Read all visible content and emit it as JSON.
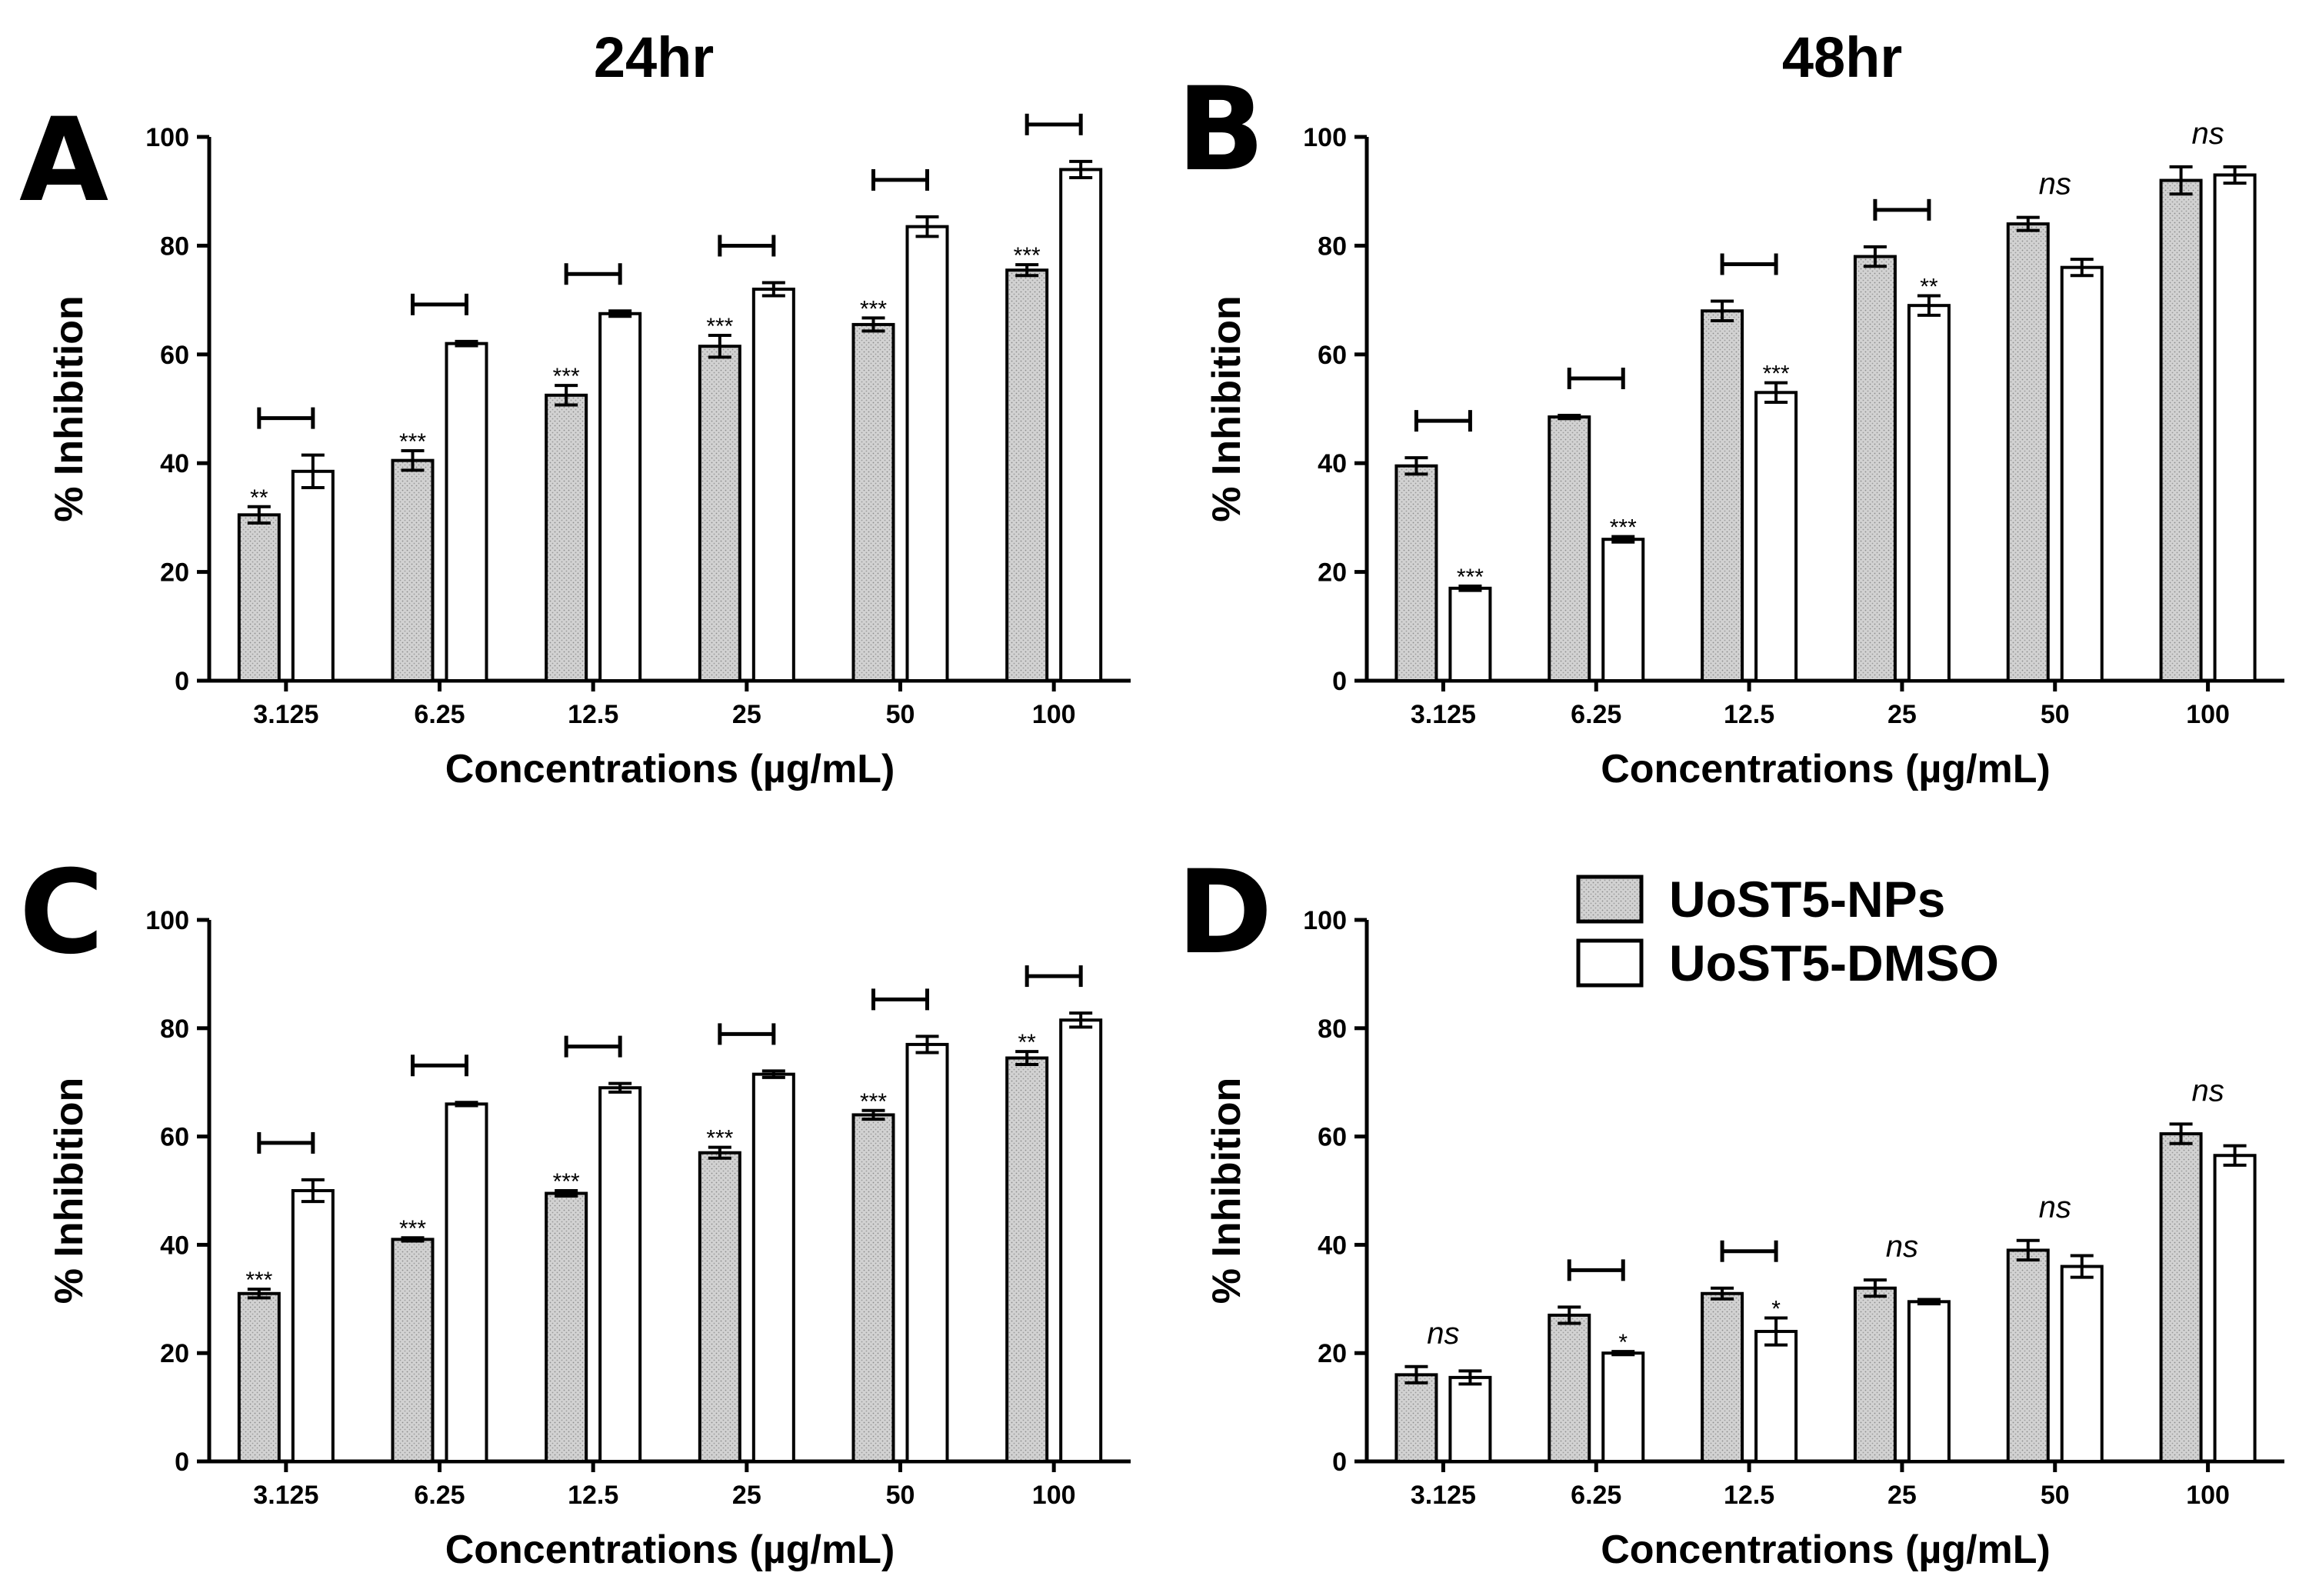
{
  "figure": {
    "column_titles": [
      "24hr",
      "48hr"
    ],
    "legend": [
      {
        "label": "UoST5-NPs",
        "style": "stippled-gray"
      },
      {
        "label": "UoST5-DMSO",
        "style": "white"
      }
    ],
    "colors": {
      "bar_np_fill": "#cfcfcf",
      "bar_dmso_fill": "#ffffff",
      "stroke": "#000000"
    }
  },
  "chart_data": [
    {
      "panel": "A",
      "type": "bar",
      "column_title": "24hr",
      "categories": [
        "3.125",
        "6.25",
        "12.5",
        "25",
        "50",
        "100"
      ],
      "xlabel": "Concentrations (µg/mL)",
      "ylabel": "% Inhibition",
      "ylim": [
        0,
        100
      ],
      "yticks": [
        "0",
        "20",
        "40",
        "60",
        "80",
        "100"
      ],
      "series": [
        {
          "name": "UoST5-NPs",
          "values": [
            30.5,
            40.5,
            52.5,
            61.5,
            65.5,
            75.5
          ],
          "errors": [
            1.5,
            1.8,
            1.8,
            2.0,
            1.2,
            1.0
          ]
        },
        {
          "name": "UoST5-DMSO",
          "values": [
            38.5,
            62,
            67.5,
            72,
            83.5,
            94
          ],
          "errors": [
            3.0,
            0.4,
            0.5,
            1.2,
            1.8,
            1.5
          ]
        }
      ],
      "significance": [
        "**",
        "***",
        "***",
        "***",
        "***",
        "***"
      ],
      "brackets": [
        true,
        true,
        true,
        true,
        true,
        true
      ]
    },
    {
      "panel": "B",
      "type": "bar",
      "column_title": "48hr",
      "categories": [
        "3.125",
        "6.25",
        "12.5",
        "25",
        "50",
        "100"
      ],
      "xlabel": "Concentrations (µg/mL)",
      "ylabel": "% Inhibition",
      "ylim": [
        0,
        100
      ],
      "yticks": [
        "0",
        "20",
        "40",
        "60",
        "80",
        "100"
      ],
      "series": [
        {
          "name": "UoST5-NPs",
          "values": [
            39.5,
            48.5,
            68,
            78,
            84,
            92
          ],
          "errors": [
            1.5,
            0.3,
            1.8,
            1.8,
            1.2,
            2.5
          ]
        },
        {
          "name": "UoST5-DMSO",
          "values": [
            17,
            26,
            53,
            69,
            76,
            93
          ],
          "errors": [
            0.4,
            0.5,
            1.8,
            1.8,
            1.5,
            1.5
          ]
        }
      ],
      "significance": [
        "***",
        "***",
        "***",
        "**",
        "ns",
        "ns"
      ],
      "brackets": [
        true,
        true,
        true,
        true,
        false,
        false
      ]
    },
    {
      "panel": "C",
      "type": "bar",
      "categories": [
        "3.125",
        "6.25",
        "12.5",
        "25",
        "50",
        "100"
      ],
      "xlabel": "Concentrations (µg/mL)",
      "ylabel": "% Inhibition",
      "ylim": [
        0,
        100
      ],
      "yticks": [
        "0",
        "20",
        "40",
        "60",
        "80",
        "100"
      ],
      "series": [
        {
          "name": "UoST5-NPs",
          "values": [
            31,
            41,
            49.5,
            57,
            64,
            74.5
          ],
          "errors": [
            0.8,
            0.3,
            0.5,
            1.0,
            0.8,
            1.2
          ]
        },
        {
          "name": "UoST5-DMSO",
          "values": [
            50,
            66,
            69,
            71.5,
            77,
            81.5
          ],
          "errors": [
            2.0,
            0.3,
            0.8,
            0.6,
            1.5,
            1.3
          ]
        }
      ],
      "significance": [
        "***",
        "***",
        "***",
        "***",
        "***",
        "**"
      ],
      "brackets": [
        true,
        true,
        true,
        true,
        true,
        true
      ]
    },
    {
      "panel": "D",
      "type": "bar",
      "categories": [
        "3.125",
        "6.25",
        "12.5",
        "25",
        "50",
        "100"
      ],
      "xlabel": "Concentrations (µg/mL)",
      "ylabel": "% Inhibition",
      "ylim": [
        0,
        100
      ],
      "yticks": [
        "0",
        "20",
        "40",
        "60",
        "80",
        "100"
      ],
      "series": [
        {
          "name": "UoST5-NPs",
          "values": [
            16,
            27,
            31,
            32,
            39,
            60.5
          ],
          "errors": [
            1.5,
            1.5,
            1.0,
            1.5,
            1.8,
            1.8
          ]
        },
        {
          "name": "UoST5-DMSO",
          "values": [
            15.5,
            20,
            24,
            29.5,
            36,
            56.5
          ],
          "errors": [
            1.2,
            0.3,
            2.5,
            0.4,
            2.0,
            1.8
          ]
        }
      ],
      "significance": [
        "ns",
        "*",
        "*",
        "ns",
        "ns",
        "ns"
      ],
      "brackets": [
        false,
        true,
        true,
        false,
        false,
        false
      ]
    }
  ]
}
